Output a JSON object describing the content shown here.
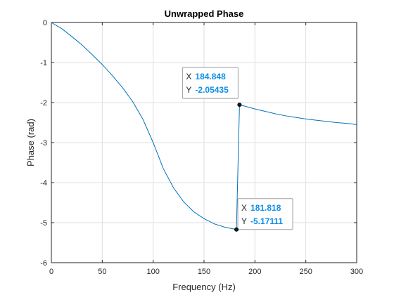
{
  "chart_data": {
    "type": "line",
    "title": "Unwrapped Phase",
    "xlabel": "Frequency (Hz)",
    "ylabel": "Phase (rad)",
    "xlim": [
      0,
      300
    ],
    "ylim": [
      -6,
      0
    ],
    "xticks": [
      0,
      50,
      100,
      150,
      200,
      250,
      300
    ],
    "yticks": [
      0,
      -1,
      -2,
      -3,
      -4,
      -5,
      -6
    ],
    "xtick_labels": [
      "0",
      "50",
      "100",
      "150",
      "200",
      "250",
      "300"
    ],
    "ytick_labels": [
      "0",
      "-1",
      "-2",
      "-3",
      "-4",
      "-5",
      "-6"
    ],
    "grid": true,
    "colors": {
      "line": "#0072bd",
      "datatip_value": "#0f8ee6",
      "axes": "#262626",
      "grid": "#dfdfdf"
    },
    "series": [
      {
        "x": [
          0,
          10,
          20,
          30,
          40,
          50,
          60,
          70,
          80,
          90,
          100,
          110,
          120,
          130,
          140,
          150,
          160,
          170,
          181.818,
          184.848,
          190,
          200,
          210,
          220,
          230,
          240,
          250,
          260,
          270,
          280,
          290,
          300
        ],
        "y": [
          0,
          -0.15,
          -0.35,
          -0.56,
          -0.8,
          -1.05,
          -1.33,
          -1.63,
          -1.98,
          -2.42,
          -3.0,
          -3.65,
          -4.13,
          -4.48,
          -4.73,
          -4.9,
          -5.03,
          -5.11,
          -5.17111,
          -2.05435,
          -2.09,
          -2.16,
          -2.22,
          -2.28,
          -2.33,
          -2.37,
          -2.41,
          -2.44,
          -2.47,
          -2.5,
          -2.52,
          -2.55
        ]
      }
    ],
    "datatips": [
      {
        "x_label": "X",
        "y_label": "Y",
        "x_value": "184.848",
        "y_value": "-2.05435",
        "x": 184.848,
        "y": -2.05435
      },
      {
        "x_label": "X",
        "y_label": "Y",
        "x_value": "181.818",
        "y_value": "-5.17111",
        "x": 181.818,
        "y": -5.17111
      }
    ]
  }
}
